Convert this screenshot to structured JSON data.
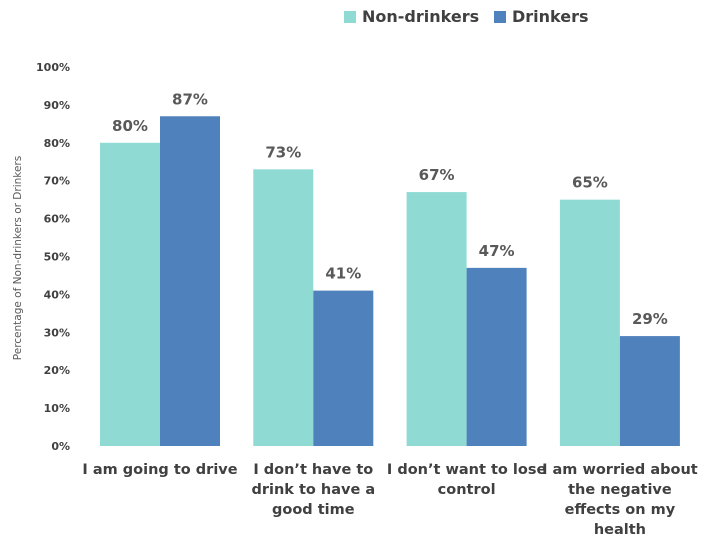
{
  "chart_data": {
    "type": "bar",
    "ylabel": "Percentage of Non-drinkers or Drinkers",
    "ylim": [
      0,
      100
    ],
    "y_ticks": [
      "0%",
      "10%",
      "20%",
      "30%",
      "40%",
      "50%",
      "60%",
      "70%",
      "80%",
      "90%",
      "100%"
    ],
    "categories": [
      [
        "I am going to drive"
      ],
      [
        "I don’t have to",
        "drink to have a",
        "good time"
      ],
      [
        "I don’t want to lose",
        "control"
      ],
      [
        "I am worried about",
        "the negative",
        "effects on my",
        "health"
      ]
    ],
    "series": [
      {
        "name": "Non-drinkers",
        "color": "#8fdbd3",
        "values": [
          80,
          73,
          67,
          65
        ],
        "labels": [
          "80%",
          "73%",
          "67%",
          "65%"
        ]
      },
      {
        "name": "Drinkers",
        "color": "#4f81bd",
        "values": [
          87,
          41,
          47,
          29
        ],
        "labels": [
          "87%",
          "41%",
          "47%",
          "29%"
        ]
      }
    ],
    "legend_position": "top",
    "grid": false
  }
}
